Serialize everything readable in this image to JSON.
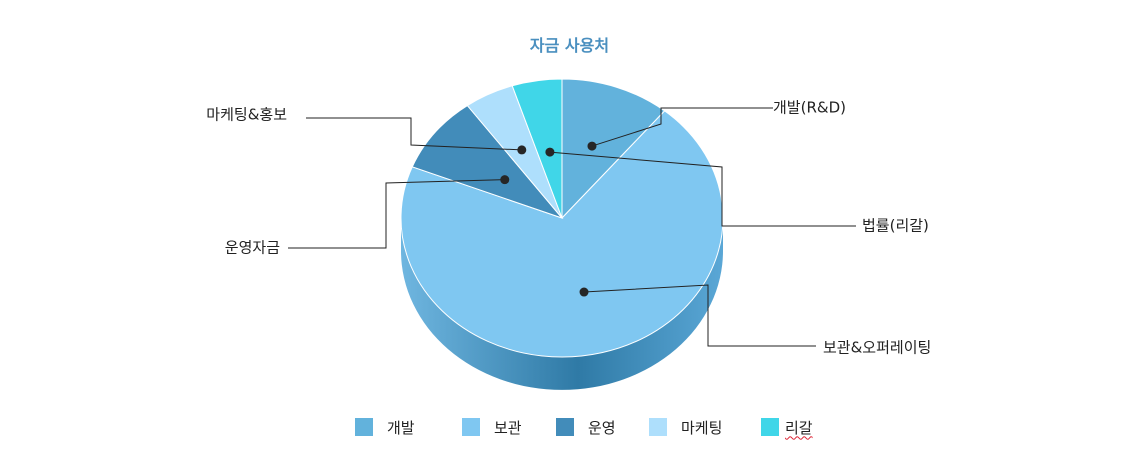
{
  "chart_data": {
    "type": "pie",
    "title": "자금 사용처",
    "style": "3d",
    "slices": [
      {
        "category": "개발",
        "callout": "개발(R&D)",
        "value": 11,
        "color": "#62b2dc"
      },
      {
        "category": "보관",
        "callout": "보관&오퍼레이팅",
        "value": 70,
        "color": "#7fc7f1"
      },
      {
        "category": "운영",
        "callout": "운영자금",
        "value": 9,
        "color": "#428cba"
      },
      {
        "category": "마케팅",
        "callout": "마케팅&홍보",
        "value": 5,
        "color": "#aedffc"
      },
      {
        "category": "리갈",
        "callout": "법률(리갈)",
        "value": 5,
        "color": "#40d6e8"
      }
    ],
    "legend_position": "bottom"
  }
}
